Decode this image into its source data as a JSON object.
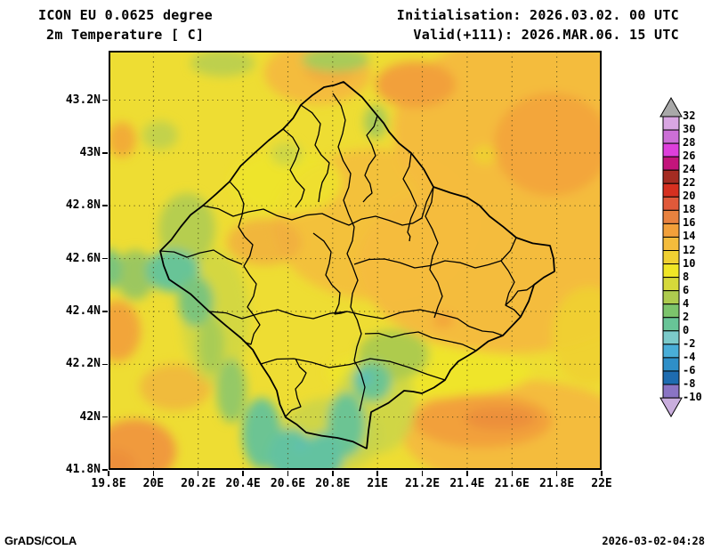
{
  "header": {
    "model_line": "ICON EU 0.0625 degree",
    "variable_line": "2m Temperature [ C]",
    "init_line": "Initialisation: 2026.03.02. 00 UTC",
    "valid_line": "Valid(+111): 2026.MAR.06. 15 UTC"
  },
  "footer": {
    "left": "GrADS/COLA",
    "right": "2026-03-02-04:28"
  },
  "axes": {
    "x_ticks": [
      "19.8E",
      "20E",
      "20.2E",
      "20.4E",
      "20.6E",
      "20.8E",
      "21E",
      "21.2E",
      "21.4E",
      "21.6E",
      "21.8E",
      "22E"
    ],
    "y_ticks": [
      "41.8N",
      "42N",
      "42.2N",
      "42.4N",
      "42.6N",
      "42.8N",
      "43N",
      "43.2N"
    ]
  },
  "chart_data": {
    "type": "heatmap",
    "title": "2m Temperature [ C]",
    "model": "ICON EU 0.0625 degree",
    "initialisation": "2026.03.02. 00 UTC",
    "valid": "2026.MAR.06. 15 UTC",
    "forecast_hour": "+111",
    "region": "Kosovo and surroundings",
    "lon_range": [
      19.8,
      22.0
    ],
    "lat_range": [
      41.8,
      43.39
    ],
    "grid_step_deg": 0.2,
    "grid": "dotted",
    "field_base_color": "#eedd33",
    "field_summary": "Mostly 10-16 C; 14-18 C in east, northeast and southern lowland cores; colder 0-6 C bands with spots near -1 C along southwest mountain valleys toward the southern tip; scattered 4-8 C patches in northwest",
    "colorbar": {
      "unit": "C",
      "levels": [
        32,
        30,
        28,
        26,
        24,
        22,
        20,
        18,
        16,
        14,
        12,
        10,
        8,
        6,
        4,
        2,
        0,
        -2,
        -4,
        -6,
        -8,
        -10
      ],
      "labels": [
        "32",
        "30",
        "28",
        "26",
        "24",
        "22",
        "20",
        "18",
        "16",
        "14",
        "12",
        "10",
        "8",
        "6",
        "4",
        "2",
        "0",
        "-2",
        "-4",
        "-6",
        "-8",
        "-10"
      ],
      "colors": [
        "#d9a6e2",
        "#cc6fd6",
        "#de3fdc",
        "#c3147c",
        "#a42c22",
        "#d63020",
        "#e0593a",
        "#e8823f",
        "#f2a03a",
        "#f4bc3c",
        "#f0d032",
        "#f0e626",
        "#d6d93a",
        "#aecb4e",
        "#7cc46c",
        "#68c497",
        "#7ccaca",
        "#49aed8",
        "#2e8fc8",
        "#1e6cb0",
        "#8a74c4"
      ],
      "over_color": "#a8a8a8",
      "under_color": "#c9aedd",
      "legend_position": "right"
    },
    "field_blobs": [
      {
        "x": 470,
        "y": 90,
        "rx": 150,
        "ry": 110,
        "c": "#f4bc3c",
        "v": 13
      },
      {
        "x": 450,
        "y": 240,
        "rx": 170,
        "ry": 100,
        "c": "#f4bc3c",
        "v": 13
      },
      {
        "x": 300,
        "y": 195,
        "rx": 115,
        "ry": 85,
        "c": "#f4bc3c",
        "v": 13,
        "o": 0.85
      },
      {
        "x": 460,
        "y": 430,
        "rx": 130,
        "ry": 60,
        "c": "#f4bc3c",
        "v": 13
      },
      {
        "x": 235,
        "y": 25,
        "rx": 60,
        "ry": 35,
        "c": "#f4bc3c",
        "v": 13
      },
      {
        "x": 530,
        "y": 455,
        "rx": 60,
        "ry": 40,
        "c": "#f4bc3c",
        "v": 13
      },
      {
        "x": 540,
        "y": 320,
        "rx": 42,
        "ry": 55,
        "c": "#f0d032",
        "v": 11,
        "o": 0.9
      },
      {
        "x": 360,
        "y": 362,
        "rx": 115,
        "ry": 28,
        "c": "#efe52c",
        "v": 9
      },
      {
        "x": 200,
        "y": 148,
        "rx": 62,
        "ry": 36,
        "c": "#efe52c",
        "v": 9,
        "o": 0.85
      },
      {
        "x": 423,
        "y": 117,
        "rx": 14,
        "ry": 11,
        "c": "#f0d032",
        "v": 11
      },
      {
        "x": 250,
        "y": 20,
        "rx": 30,
        "ry": 16,
        "c": "#f2a83f",
        "v": 15,
        "o": 0.8
      },
      {
        "x": 345,
        "y": 38,
        "rx": 45,
        "ry": 26,
        "c": "#f2a03a",
        "v": 15
      },
      {
        "x": 498,
        "y": 105,
        "rx": 65,
        "ry": 58,
        "c": "#f2a03a",
        "v": 15,
        "o": 0.8
      },
      {
        "x": 420,
        "y": 416,
        "rx": 78,
        "ry": 30,
        "c": "#f2a03a",
        "v": 15
      },
      {
        "x": 440,
        "y": 413,
        "rx": 40,
        "ry": 13,
        "c": "#ec8f3a",
        "v": 17
      },
      {
        "x": 15,
        "y": 100,
        "rx": 16,
        "ry": 20,
        "c": "#f2a03a",
        "v": 15,
        "o": 0.8
      },
      {
        "x": 10,
        "y": 315,
        "rx": 26,
        "ry": 34,
        "c": "#f2a03a",
        "v": 15,
        "o": 0.9
      },
      {
        "x": 30,
        "y": 450,
        "rx": 46,
        "ry": 36,
        "c": "#f09a3c",
        "v": 15
      },
      {
        "x": 5,
        "y": 465,
        "rx": 24,
        "ry": 16,
        "c": "#ec8f3a",
        "v": 17
      },
      {
        "x": 175,
        "y": 215,
        "rx": 42,
        "ry": 26,
        "c": "#f1ac40",
        "v": 14,
        "o": 0.8
      },
      {
        "x": 75,
        "y": 378,
        "rx": 40,
        "ry": 26,
        "c": "#f1ac40",
        "v": 14,
        "o": 0.7
      },
      {
        "x": 376,
        "y": 303,
        "rx": 12,
        "ry": 8,
        "c": "#f2a03a",
        "v": 15,
        "o": 0.85
      },
      {
        "x": 120,
        "y": 300,
        "rx": 38,
        "ry": 75,
        "c": "#cdd646",
        "v": 6,
        "o": 0.8
      },
      {
        "x": 250,
        "y": 432,
        "rx": 58,
        "ry": 42,
        "c": "#c9d44a",
        "v": 6,
        "o": 0.85
      },
      {
        "x": 300,
        "y": 398,
        "rx": 45,
        "ry": 55,
        "c": "#c9d44a",
        "v": 6,
        "o": 0.8
      },
      {
        "x": 320,
        "y": 342,
        "rx": 40,
        "ry": 28,
        "c": "#aecb4e",
        "v": 5
      },
      {
        "x": 128,
        "y": 14,
        "rx": 36,
        "ry": 15,
        "c": "#bed04e",
        "v": 7
      },
      {
        "x": 255,
        "y": 10,
        "rx": 38,
        "ry": 14,
        "c": "#a9cb58",
        "v": 5
      },
      {
        "x": 58,
        "y": 95,
        "rx": 20,
        "ry": 16,
        "c": "#c3d24c",
        "v": 7
      },
      {
        "x": 88,
        "y": 200,
        "rx": 32,
        "ry": 40,
        "c": "#b6ce50",
        "v": 6
      },
      {
        "x": 30,
        "y": 252,
        "rx": 22,
        "ry": 28,
        "c": "#9cc75e",
        "v": 4
      },
      {
        "x": 200,
        "y": 116,
        "rx": 18,
        "ry": 13,
        "c": "#ccd648",
        "v": 7,
        "o": 0.9
      },
      {
        "x": 300,
        "y": 80,
        "rx": 13,
        "ry": 19,
        "c": "#9cc75e",
        "v": 4,
        "o": 0.85
      },
      {
        "x": 2,
        "y": 245,
        "rx": 13,
        "ry": 22,
        "c": "#7cc47c",
        "v": 3
      },
      {
        "x": 72,
        "y": 247,
        "rx": 30,
        "ry": 24,
        "c": "#68c497",
        "v": 1
      },
      {
        "x": 98,
        "y": 282,
        "rx": 20,
        "ry": 28,
        "c": "#7cc47c",
        "v": 3
      },
      {
        "x": 115,
        "y": 330,
        "rx": 15,
        "ry": 32,
        "c": "#a5cb58",
        "v": 5,
        "o": 0.9
      },
      {
        "x": 138,
        "y": 382,
        "rx": 17,
        "ry": 36,
        "c": "#8cc76c",
        "v": 3,
        "o": 0.9
      },
      {
        "x": 172,
        "y": 430,
        "rx": 22,
        "ry": 40,
        "c": "#6cc493",
        "v": 1
      },
      {
        "x": 205,
        "y": 455,
        "rx": 26,
        "ry": 30,
        "c": "#63c2a0",
        "v": 1
      },
      {
        "x": 218,
        "y": 452,
        "rx": 9,
        "ry": 11,
        "c": "#58bcc4",
        "v": -1
      },
      {
        "x": 296,
        "y": 372,
        "rx": 22,
        "ry": 22,
        "c": "#6cc493",
        "v": 1
      },
      {
        "x": 288,
        "y": 368,
        "rx": 7,
        "ry": 7,
        "c": "#58bcc4",
        "v": -1,
        "o": 0.9
      },
      {
        "x": 267,
        "y": 420,
        "rx": 21,
        "ry": 36,
        "c": "#6cc493",
        "v": 1
      },
      {
        "x": 242,
        "y": 455,
        "rx": 22,
        "ry": 26,
        "c": "#63c2a0",
        "v": 1
      },
      {
        "x": 228,
        "y": 463,
        "rx": 32,
        "ry": 18,
        "c": "#63c2a0",
        "v": 1
      }
    ]
  }
}
